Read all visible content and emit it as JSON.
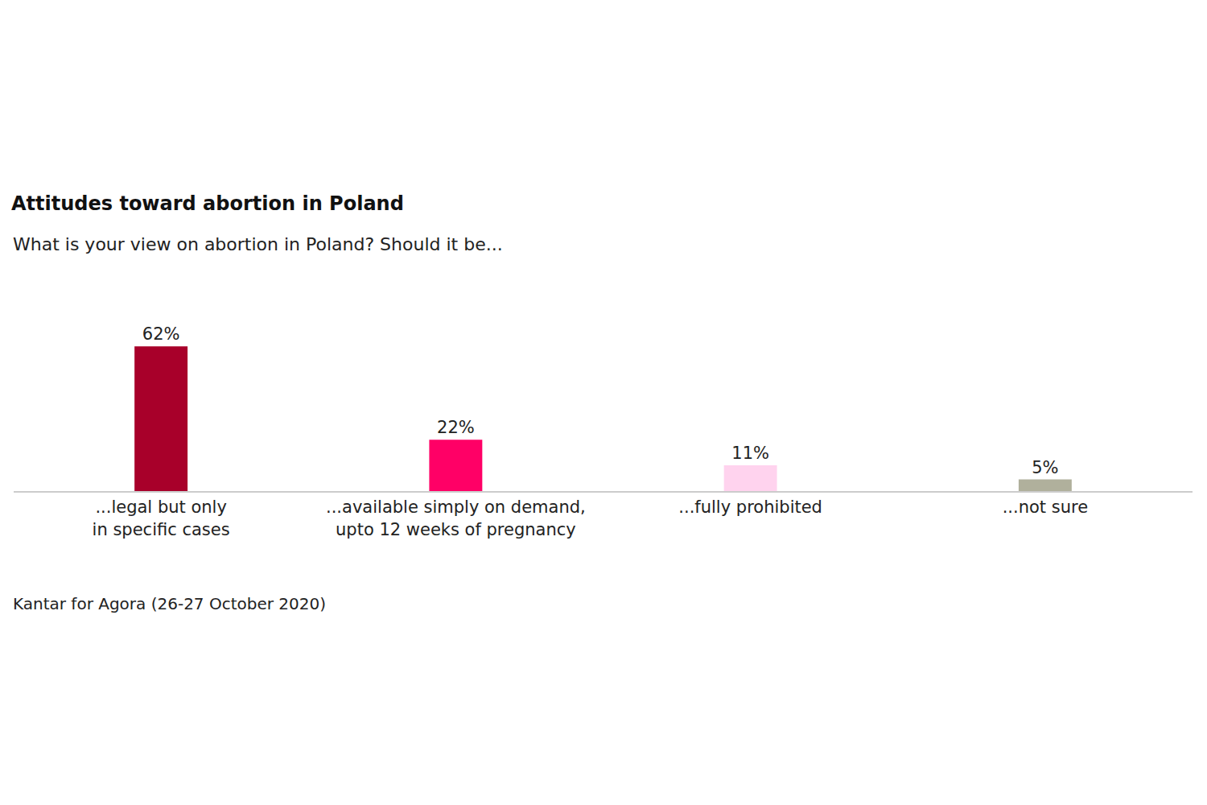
{
  "chart_data": {
    "type": "bar",
    "title": "Attitudes toward abortion in Poland",
    "subtitle": "What is your view on abortion in Poland? Should it be...",
    "source": "Kantar for Agora (26-27 October 2020)",
    "categories": [
      "...legal but only\nin specific cases",
      "...available simply on demand,\nupto 12 weeks of pregnancy",
      "...fully prohibited",
      "...not sure"
    ],
    "values": [
      62,
      22,
      11,
      5
    ],
    "value_labels": [
      "62%",
      "22%",
      "11%",
      "5%"
    ],
    "colors": [
      "#a8002a",
      "#ff0066",
      "#ffd3ee",
      "#b0b09c"
    ],
    "ylim": [
      0,
      100
    ],
    "grid": false,
    "data_labels": true,
    "tick_labels": "x"
  }
}
